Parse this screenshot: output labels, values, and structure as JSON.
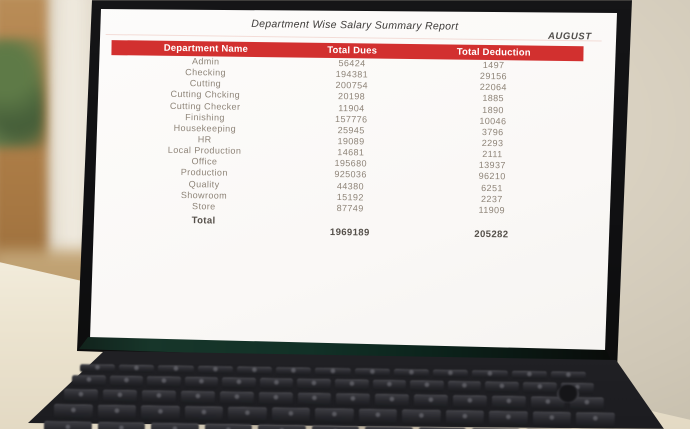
{
  "report": {
    "title": "Department Wise Salary Summary Report",
    "month": "AUGUST",
    "columns": {
      "department": "Department Name",
      "dues": "Total Dues",
      "deduction": "Total Deduction"
    },
    "header_bg": "#d2302f",
    "header_text_color": "#ffffff",
    "rows": [
      {
        "name": "Admin",
        "dues": "56424",
        "deduction": "1497"
      },
      {
        "name": "Checking",
        "dues": "194381",
        "deduction": "29156"
      },
      {
        "name": "Cutting",
        "dues": "200754",
        "deduction": "22064"
      },
      {
        "name": "Cutting Chcking",
        "dues": "20198",
        "deduction": "1885"
      },
      {
        "name": "Cutting Checker",
        "dues": "11904",
        "deduction": "1890"
      },
      {
        "name": "Finishing",
        "dues": "157776",
        "deduction": "10046"
      },
      {
        "name": "Housekeeping",
        "dues": "25945",
        "deduction": "3796"
      },
      {
        "name": "HR",
        "dues": "19089",
        "deduction": "2293"
      },
      {
        "name": "Local Production",
        "dues": "14681",
        "deduction": "2111"
      },
      {
        "name": "Office",
        "dues": "195680",
        "deduction": "13937"
      },
      {
        "name": "Production",
        "dues": "925036",
        "deduction": "96210"
      },
      {
        "name": "Quality",
        "dues": "44380",
        "deduction": "6251"
      },
      {
        "name": "Showroom",
        "dues": "15192",
        "deduction": "2237"
      },
      {
        "name": "Store",
        "dues": "87749",
        "deduction": "11909"
      }
    ],
    "total": {
      "label": "Total",
      "dues": "1969189",
      "deduction": "205282"
    }
  },
  "scene": {
    "laptop_body_color": "#2a2a2e",
    "screen_color": "#fcfbfa",
    "desk_color": "#ece4d0",
    "wall_color": "#d8d0c0",
    "wood_shelf_color": "#b08049",
    "plant_color": "#4e6b3f"
  }
}
